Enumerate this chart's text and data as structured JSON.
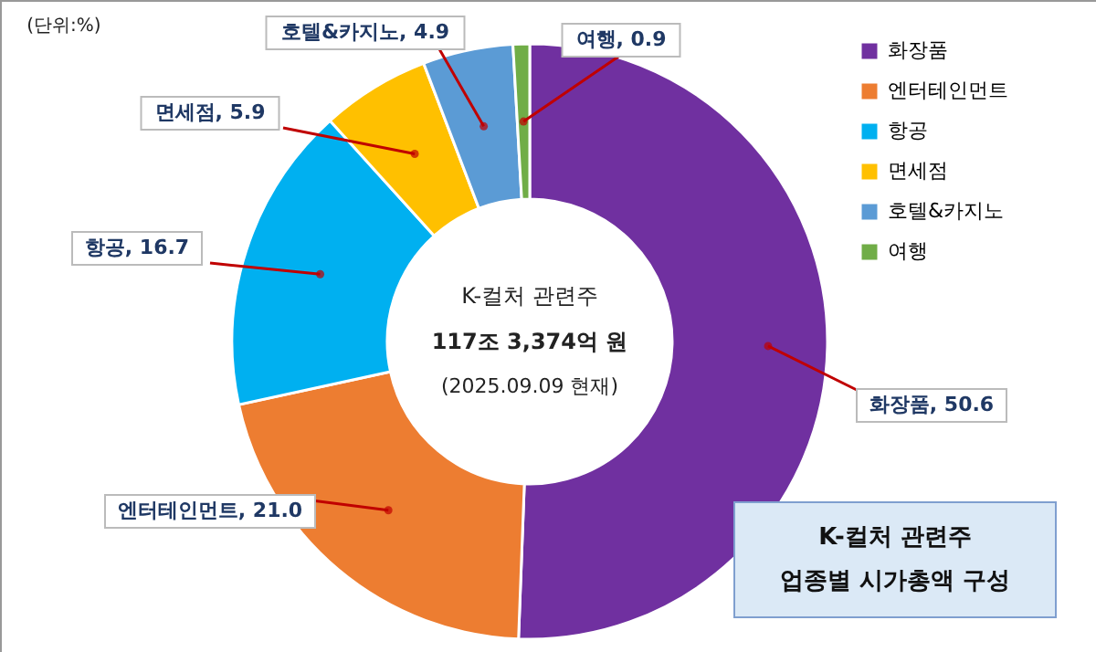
{
  "chart_data": {
    "type": "donut",
    "title": "K-컬처 관련주\n업종별 시가총액 구성",
    "categories": [
      "화장품",
      "엔터테인먼트",
      "항공",
      "면세점",
      "호텔&카지노",
      "여행"
    ],
    "values": [
      50.6,
      21.0,
      16.7,
      5.9,
      4.9,
      0.9
    ],
    "colors": [
      "#7030a0",
      "#ed7d31",
      "#00b0f0",
      "#ffc000",
      "#5b9bd5",
      "#70ad47"
    ],
    "value_labels": [
      "화장품, 50.6",
      "엔터테인먼트, 21.0",
      "항공, 16.7",
      "면세점, 5.9",
      "호텔&카지노, 4.9",
      "여행, 0.9"
    ],
    "legend": "top right",
    "annotations": [
      "(단위:%)",
      "K-컬처 관련주",
      "117조 3,374억 원",
      "(2025.09.09 현재)"
    ]
  }
}
